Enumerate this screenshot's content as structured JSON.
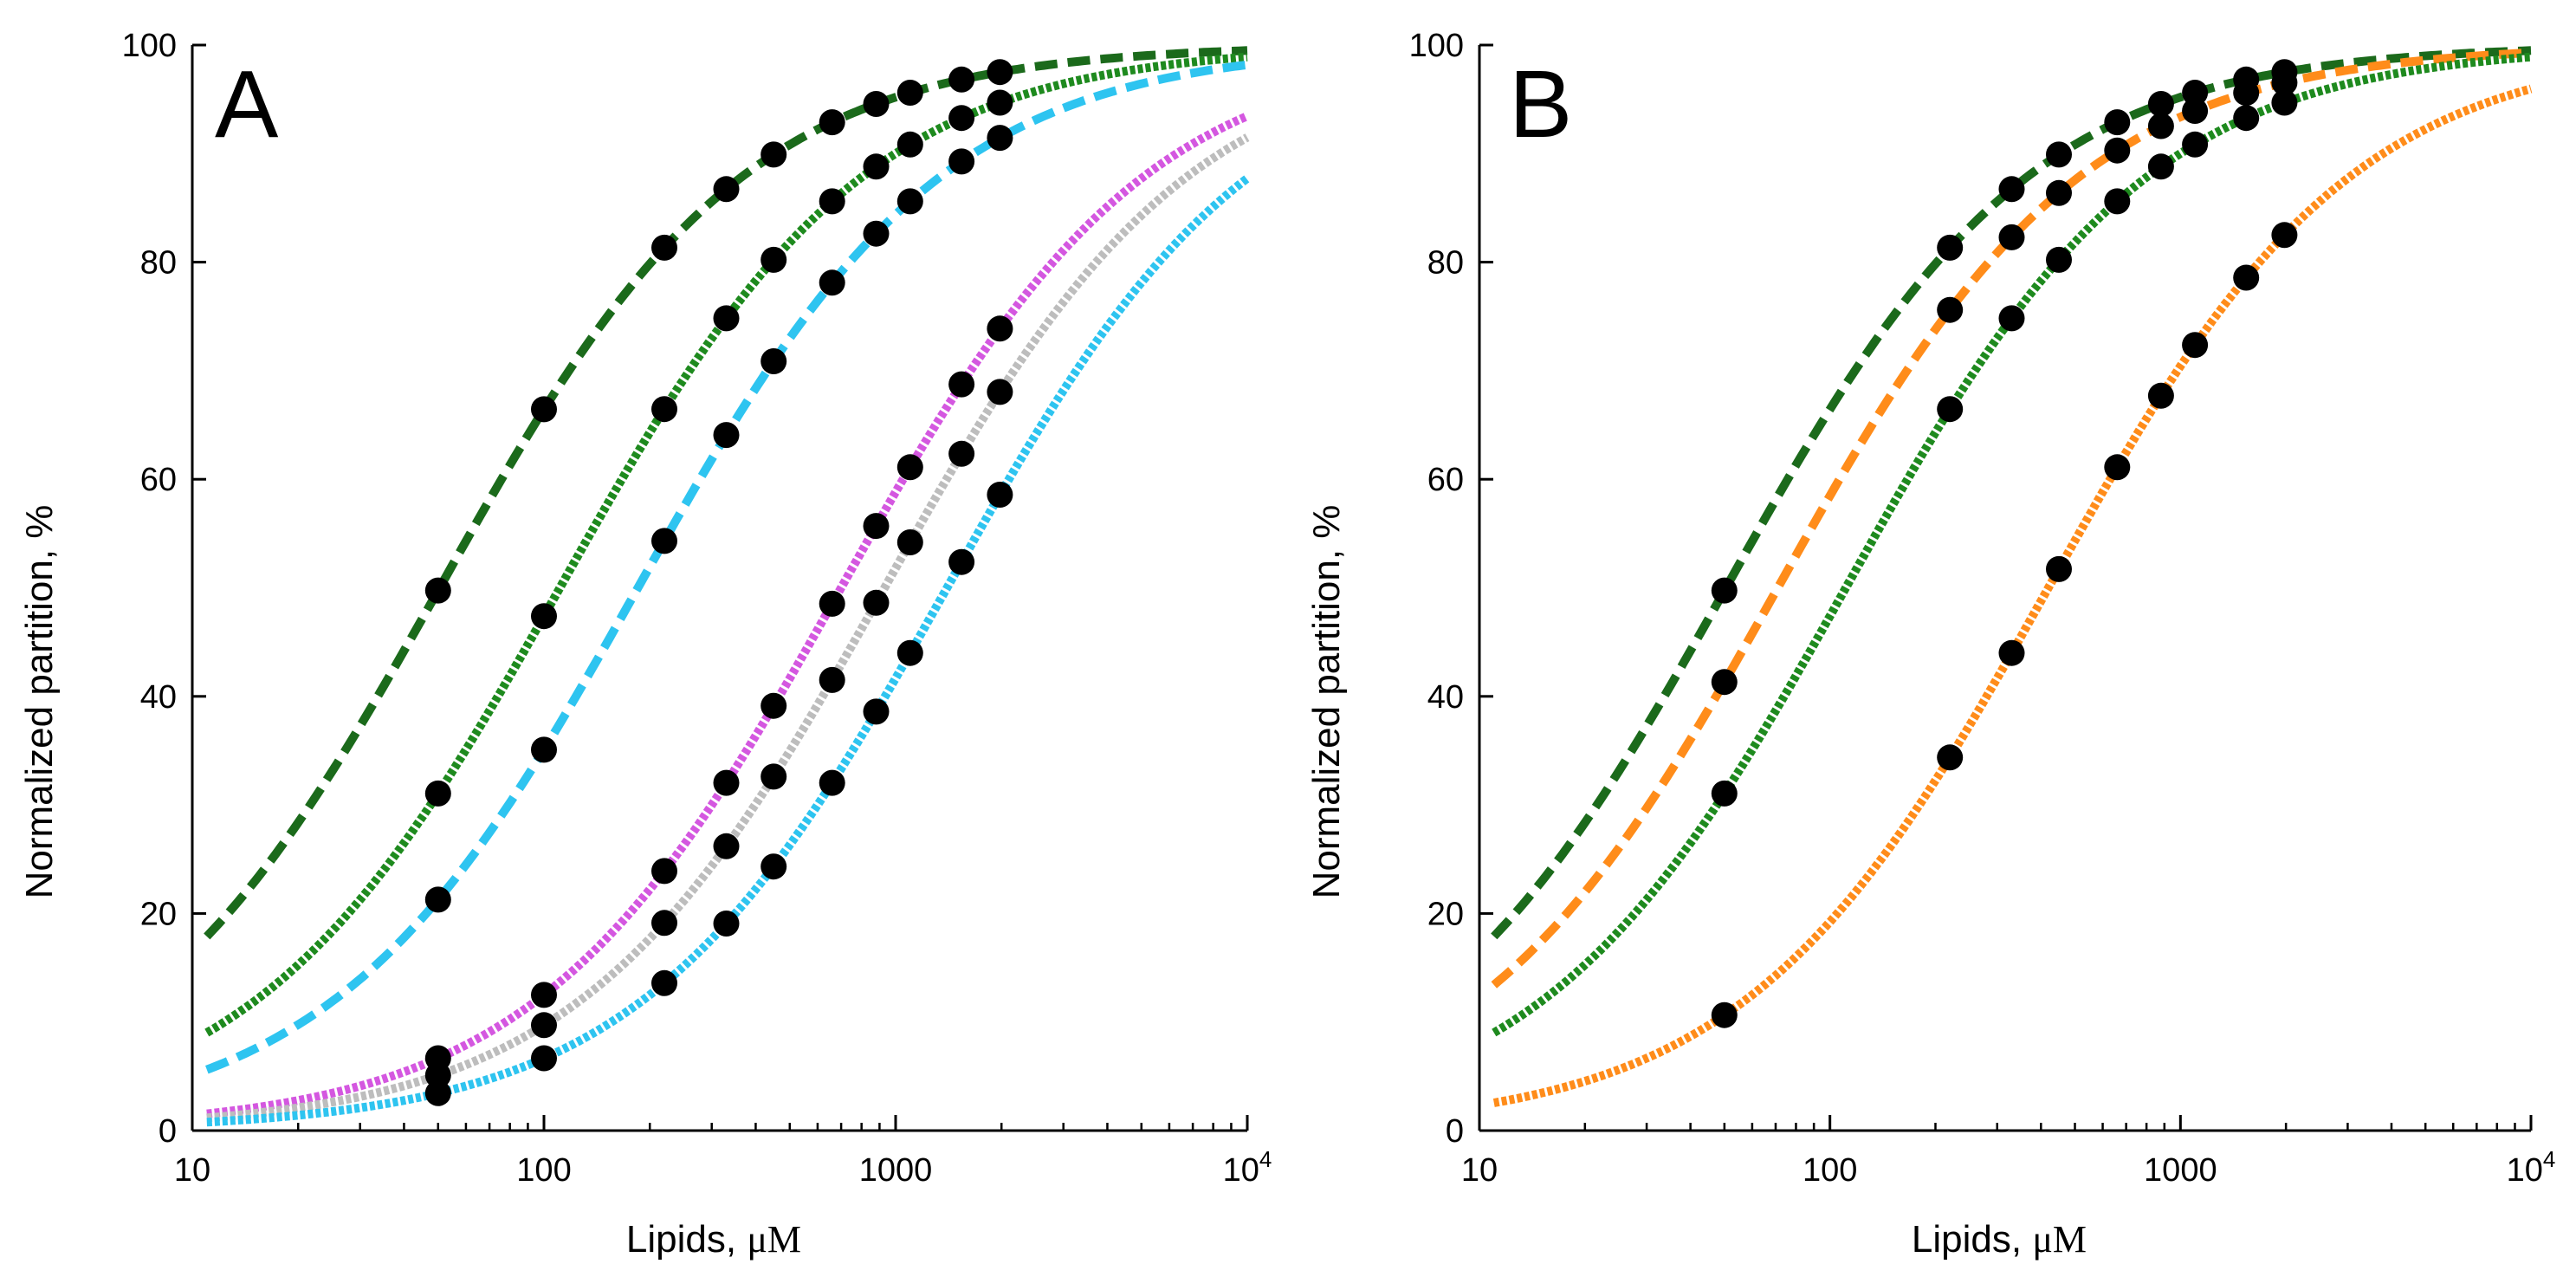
{
  "chart_data": [
    {
      "type": "line",
      "panel_label": "A",
      "xscale": "log",
      "xlim": [
        10,
        10000
      ],
      "ylim": [
        0,
        100
      ],
      "xlabel_prefix": "Lipids, ",
      "xlabel_unit": "μM",
      "ylabel": "Normalized partition, %",
      "xticks": [
        10,
        100,
        1000,
        10000
      ],
      "xtick_labels": [
        {
          "base": "10",
          "exp": ""
        },
        {
          "base": "100",
          "exp": ""
        },
        {
          "base": "1000",
          "exp": ""
        },
        {
          "base": "10",
          "exp": "4"
        }
      ],
      "yticks": [
        0,
        20,
        40,
        60,
        80,
        100
      ],
      "ytick_labels": [
        "0",
        "20",
        "40",
        "60",
        "80",
        "100"
      ],
      "grid": false,
      "points_x": [
        50,
        100,
        220,
        330,
        450,
        660,
        880,
        1100,
        1540,
        1980
      ],
      "series": [
        {
          "name": "dark green dashed",
          "color": "#1b6a1b",
          "style": "dashed",
          "K": 50.5,
          "markers": [
            50,
            100,
            220,
            330,
            450,
            660,
            880,
            1100,
            1540,
            1980
          ]
        },
        {
          "name": "green solid",
          "color": "#1e8a1e",
          "style": "solid",
          "K": 111,
          "markers": [
            50,
            100,
            220,
            330,
            450,
            660,
            880,
            1100,
            1540,
            1980
          ]
        },
        {
          "name": "light blue dashed",
          "color": "#2ec4f0",
          "style": "dashed",
          "K": 185,
          "markers": [
            50,
            100,
            220,
            330,
            450,
            660,
            880,
            1100,
            1540,
            1980
          ]
        },
        {
          "name": "magenta solid",
          "color": "#d457e0",
          "style": "solid",
          "K": 700,
          "markers": [
            50,
            100,
            220,
            330,
            450,
            660,
            880,
            1100,
            1540,
            1980
          ]
        },
        {
          "name": "gray solid",
          "color": "#bdbdbd",
          "style": "solid",
          "K": 930,
          "markers": [
            50,
            100,
            220,
            330,
            450,
            660,
            880,
            1100,
            1540,
            1980
          ]
        },
        {
          "name": "light blue solid",
          "color": "#2ec4f0",
          "style": "solid",
          "K": 1400,
          "markers": [
            50,
            100,
            220,
            330,
            450,
            660,
            880,
            1100,
            1540,
            1980
          ]
        }
      ]
    },
    {
      "type": "line",
      "panel_label": "B",
      "xscale": "log",
      "xlim": [
        10,
        10000
      ],
      "ylim": [
        0,
        100
      ],
      "xlabel_prefix": "Lipids, ",
      "xlabel_unit": "μM",
      "ylabel": "Normalized partition, %",
      "xticks": [
        10,
        100,
        1000,
        10000
      ],
      "xtick_labels": [
        {
          "base": "10",
          "exp": ""
        },
        {
          "base": "100",
          "exp": ""
        },
        {
          "base": "1000",
          "exp": ""
        },
        {
          "base": "10",
          "exp": "4"
        }
      ],
      "yticks": [
        0,
        20,
        40,
        60,
        80,
        100
      ],
      "ytick_labels": [
        "0",
        "20",
        "40",
        "60",
        "80",
        "100"
      ],
      "grid": false,
      "points_x": [
        50,
        100,
        220,
        330,
        450,
        660,
        880,
        1100,
        1540,
        1980
      ],
      "series": [
        {
          "name": "dark green dashed",
          "color": "#1b6a1b",
          "style": "dashed",
          "K": 50.5,
          "markers": [
            50,
            220,
            330,
            450,
            660,
            880,
            1100,
            1540,
            1980
          ]
        },
        {
          "name": "orange dashed",
          "color": "#ff8c1a",
          "style": "dashed",
          "K": 71,
          "markers": [
            50,
            220,
            330,
            450,
            660,
            880,
            1100,
            1540,
            1980
          ]
        },
        {
          "name": "green solid",
          "color": "#1e8a1e",
          "style": "solid",
          "K": 111,
          "markers": [
            50,
            220,
            330,
            450,
            660,
            880,
            1100,
            1540,
            1980
          ]
        },
        {
          "name": "orange solid",
          "color": "#ff8c1a",
          "style": "solid",
          "K": 420,
          "markers": [
            50,
            220,
            330,
            450,
            660,
            880,
            1100,
            1540,
            1980
          ]
        }
      ]
    }
  ]
}
